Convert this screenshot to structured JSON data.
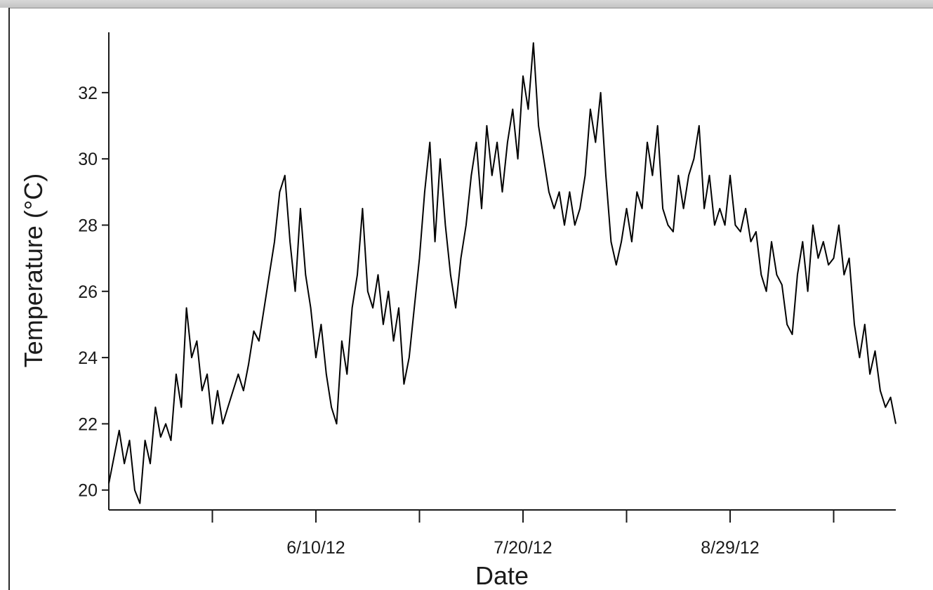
{
  "chart_data": {
    "type": "line",
    "title": "",
    "xlabel": "Date",
    "ylabel": "Temperature (°C)",
    "x_start": "2012-05-01",
    "x_end": "2012-09-30",
    "xlim": [
      "2012-05-01",
      "2012-09-30"
    ],
    "ylim": [
      19.4,
      33.8
    ],
    "x_ticks_major": [
      {
        "date": "2012-06-10",
        "label": "6/10/12"
      },
      {
        "date": "2012-07-20",
        "label": "7/20/12"
      },
      {
        "date": "2012-08-29",
        "label": "8/29/12"
      }
    ],
    "x_ticks_minor": [
      "2012-05-21",
      "2012-06-30",
      "2012-08-09",
      "2012-09-18"
    ],
    "y_ticks": [
      20,
      22,
      24,
      26,
      28,
      30,
      32
    ],
    "grid": false,
    "series": [
      {
        "name": "",
        "color": "#000000",
        "points": [
          [
            "2012-05-01",
            20.2
          ],
          [
            "2012-05-02",
            21.0
          ],
          [
            "2012-05-03",
            21.8
          ],
          [
            "2012-05-04",
            20.8
          ],
          [
            "2012-05-05",
            21.5
          ],
          [
            "2012-05-06",
            20.0
          ],
          [
            "2012-05-07",
            19.6
          ],
          [
            "2012-05-08",
            21.5
          ],
          [
            "2012-05-09",
            20.8
          ],
          [
            "2012-05-10",
            22.5
          ],
          [
            "2012-05-11",
            21.6
          ],
          [
            "2012-05-12",
            22.0
          ],
          [
            "2012-05-13",
            21.5
          ],
          [
            "2012-05-14",
            23.5
          ],
          [
            "2012-05-15",
            22.5
          ],
          [
            "2012-05-16",
            25.5
          ],
          [
            "2012-05-17",
            24.0
          ],
          [
            "2012-05-18",
            24.5
          ],
          [
            "2012-05-19",
            23.0
          ],
          [
            "2012-05-20",
            23.5
          ],
          [
            "2012-05-21",
            22.0
          ],
          [
            "2012-05-22",
            23.0
          ],
          [
            "2012-05-23",
            22.0
          ],
          [
            "2012-05-24",
            22.5
          ],
          [
            "2012-05-25",
            23.0
          ],
          [
            "2012-05-26",
            23.5
          ],
          [
            "2012-05-27",
            23.0
          ],
          [
            "2012-05-28",
            23.8
          ],
          [
            "2012-05-29",
            24.8
          ],
          [
            "2012-05-30",
            24.5
          ],
          [
            "2012-05-31",
            25.5
          ],
          [
            "2012-06-01",
            26.5
          ],
          [
            "2012-06-02",
            27.5
          ],
          [
            "2012-06-03",
            29.0
          ],
          [
            "2012-06-04",
            29.5
          ],
          [
            "2012-06-05",
            27.5
          ],
          [
            "2012-06-06",
            26.0
          ],
          [
            "2012-06-07",
            28.5
          ],
          [
            "2012-06-08",
            26.5
          ],
          [
            "2012-06-09",
            25.5
          ],
          [
            "2012-06-10",
            24.0
          ],
          [
            "2012-06-11",
            25.0
          ],
          [
            "2012-06-12",
            23.5
          ],
          [
            "2012-06-13",
            22.5
          ],
          [
            "2012-06-14",
            22.0
          ],
          [
            "2012-06-15",
            24.5
          ],
          [
            "2012-06-16",
            23.5
          ],
          [
            "2012-06-17",
            25.5
          ],
          [
            "2012-06-18",
            26.5
          ],
          [
            "2012-06-19",
            28.5
          ],
          [
            "2012-06-20",
            26.0
          ],
          [
            "2012-06-21",
            25.5
          ],
          [
            "2012-06-22",
            26.5
          ],
          [
            "2012-06-23",
            25.0
          ],
          [
            "2012-06-24",
            26.0
          ],
          [
            "2012-06-25",
            24.5
          ],
          [
            "2012-06-26",
            25.5
          ],
          [
            "2012-06-27",
            23.2
          ],
          [
            "2012-06-28",
            24.0
          ],
          [
            "2012-06-29",
            25.5
          ],
          [
            "2012-06-30",
            27.0
          ],
          [
            "2012-07-01",
            29.0
          ],
          [
            "2012-07-02",
            30.5
          ],
          [
            "2012-07-03",
            27.5
          ],
          [
            "2012-07-04",
            30.0
          ],
          [
            "2012-07-05",
            28.0
          ],
          [
            "2012-07-06",
            26.5
          ],
          [
            "2012-07-07",
            25.5
          ],
          [
            "2012-07-08",
            27.0
          ],
          [
            "2012-07-09",
            28.0
          ],
          [
            "2012-07-10",
            29.5
          ],
          [
            "2012-07-11",
            30.5
          ],
          [
            "2012-07-12",
            28.5
          ],
          [
            "2012-07-13",
            31.0
          ],
          [
            "2012-07-14",
            29.5
          ],
          [
            "2012-07-15",
            30.5
          ],
          [
            "2012-07-16",
            29.0
          ],
          [
            "2012-07-17",
            30.5
          ],
          [
            "2012-07-18",
            31.5
          ],
          [
            "2012-07-19",
            30.0
          ],
          [
            "2012-07-20",
            32.5
          ],
          [
            "2012-07-21",
            31.5
          ],
          [
            "2012-07-22",
            33.5
          ],
          [
            "2012-07-23",
            31.0
          ],
          [
            "2012-07-24",
            30.0
          ],
          [
            "2012-07-25",
            29.0
          ],
          [
            "2012-07-26",
            28.5
          ],
          [
            "2012-07-27",
            29.0
          ],
          [
            "2012-07-28",
            28.0
          ],
          [
            "2012-07-29",
            29.0
          ],
          [
            "2012-07-30",
            28.0
          ],
          [
            "2012-07-31",
            28.5
          ],
          [
            "2012-08-01",
            29.5
          ],
          [
            "2012-08-02",
            31.5
          ],
          [
            "2012-08-03",
            30.5
          ],
          [
            "2012-08-04",
            32.0
          ],
          [
            "2012-08-05",
            29.5
          ],
          [
            "2012-08-06",
            27.5
          ],
          [
            "2012-08-07",
            26.8
          ],
          [
            "2012-08-08",
            27.5
          ],
          [
            "2012-08-09",
            28.5
          ],
          [
            "2012-08-10",
            27.5
          ],
          [
            "2012-08-11",
            29.0
          ],
          [
            "2012-08-12",
            28.5
          ],
          [
            "2012-08-13",
            30.5
          ],
          [
            "2012-08-14",
            29.5
          ],
          [
            "2012-08-15",
            31.0
          ],
          [
            "2012-08-16",
            28.5
          ],
          [
            "2012-08-17",
            28.0
          ],
          [
            "2012-08-18",
            27.8
          ],
          [
            "2012-08-19",
            29.5
          ],
          [
            "2012-08-20",
            28.5
          ],
          [
            "2012-08-21",
            29.5
          ],
          [
            "2012-08-22",
            30.0
          ],
          [
            "2012-08-23",
            31.0
          ],
          [
            "2012-08-24",
            28.5
          ],
          [
            "2012-08-25",
            29.5
          ],
          [
            "2012-08-26",
            28.0
          ],
          [
            "2012-08-27",
            28.5
          ],
          [
            "2012-08-28",
            28.0
          ],
          [
            "2012-08-29",
            29.5
          ],
          [
            "2012-08-30",
            28.0
          ],
          [
            "2012-08-31",
            27.8
          ],
          [
            "2012-09-01",
            28.5
          ],
          [
            "2012-09-02",
            27.5
          ],
          [
            "2012-09-03",
            27.8
          ],
          [
            "2012-09-04",
            26.5
          ],
          [
            "2012-09-05",
            26.0
          ],
          [
            "2012-09-06",
            27.5
          ],
          [
            "2012-09-07",
            26.5
          ],
          [
            "2012-09-08",
            26.2
          ],
          [
            "2012-09-09",
            25.0
          ],
          [
            "2012-09-10",
            24.7
          ],
          [
            "2012-09-11",
            26.5
          ],
          [
            "2012-09-12",
            27.5
          ],
          [
            "2012-09-13",
            26.0
          ],
          [
            "2012-09-14",
            28.0
          ],
          [
            "2012-09-15",
            27.0
          ],
          [
            "2012-09-16",
            27.5
          ],
          [
            "2012-09-17",
            26.8
          ],
          [
            "2012-09-18",
            27.0
          ],
          [
            "2012-09-19",
            28.0
          ],
          [
            "2012-09-20",
            26.5
          ],
          [
            "2012-09-21",
            27.0
          ],
          [
            "2012-09-22",
            25.0
          ],
          [
            "2012-09-23",
            24.0
          ],
          [
            "2012-09-24",
            25.0
          ],
          [
            "2012-09-25",
            23.5
          ],
          [
            "2012-09-26",
            24.2
          ],
          [
            "2012-09-27",
            23.0
          ],
          [
            "2012-09-28",
            22.5
          ],
          [
            "2012-09-29",
            22.8
          ],
          [
            "2012-09-30",
            22.0
          ]
        ]
      }
    ]
  }
}
